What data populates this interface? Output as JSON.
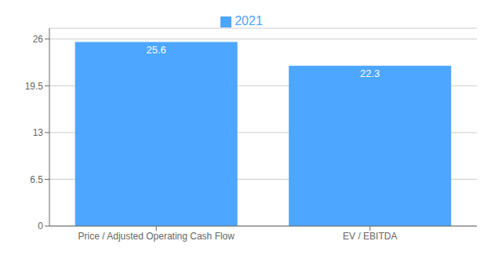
{
  "chart_data": {
    "type": "bar",
    "categories": [
      "Price / Adjusted Operating Cash Flow",
      "EV / EBITDA"
    ],
    "series": [
      {
        "name": "2021",
        "color": "#4da6ff",
        "values": [
          25.6,
          22.3
        ]
      }
    ],
    "ylim": [
      0,
      27.5
    ],
    "yticks": [
      0,
      6.5,
      13,
      19.5,
      26
    ],
    "grid": true,
    "legend": "top",
    "data_labels": true
  }
}
